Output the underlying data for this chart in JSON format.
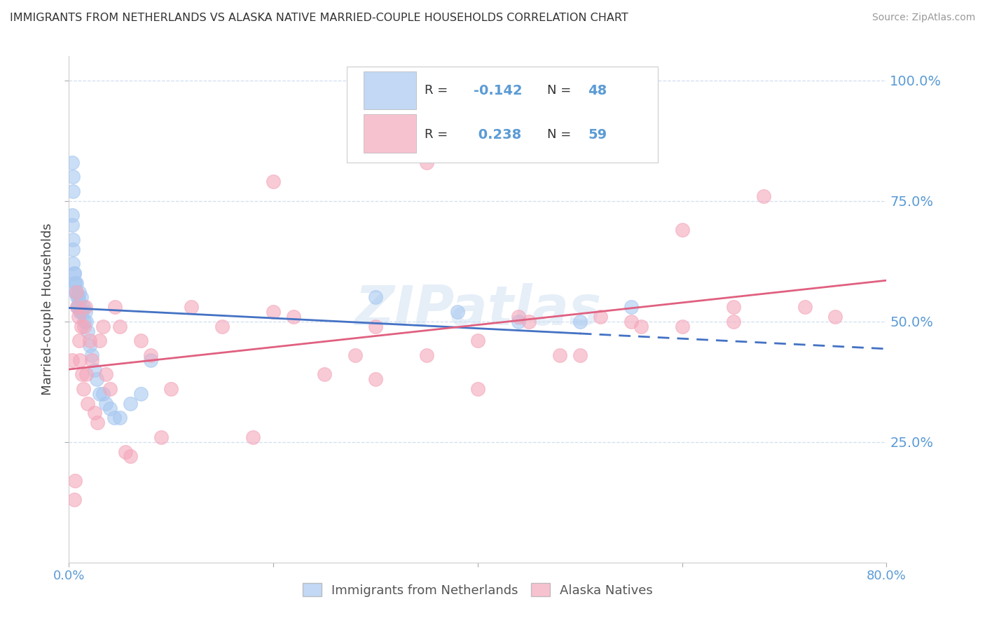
{
  "title": "IMMIGRANTS FROM NETHERLANDS VS ALASKA NATIVE MARRIED-COUPLE HOUSEHOLDS CORRELATION CHART",
  "source": "Source: ZipAtlas.com",
  "ylabel": "Married-couple Households",
  "xmin": 0.0,
  "xmax": 0.8,
  "ymin": 0.0,
  "ymax": 1.05,
  "yticks": [
    0.25,
    0.5,
    0.75,
    1.0
  ],
  "ytick_labels": [
    "25.0%",
    "50.0%",
    "75.0%",
    "100.0%"
  ],
  "xtick_labels": [
    "0.0%",
    "",
    "",
    "",
    "80.0%"
  ],
  "blue_R": -0.142,
  "blue_N": 48,
  "pink_R": 0.238,
  "pink_N": 59,
  "blue_color": "#a8c8f0",
  "pink_color": "#f4a8bc",
  "trend_blue_color": "#4472c4",
  "trend_pink_color": "#e06080",
  "axis_color": "#5b9bd5",
  "grid_color": "#d0dff0",
  "watermark": "ZIPatlas",
  "blue_scatter_x": [
    0.003,
    0.004,
    0.004,
    0.003,
    0.003,
    0.004,
    0.004,
    0.004,
    0.005,
    0.005,
    0.006,
    0.006,
    0.006,
    0.007,
    0.007,
    0.008,
    0.008,
    0.009,
    0.009,
    0.01,
    0.01,
    0.011,
    0.012,
    0.012,
    0.013,
    0.014,
    0.015,
    0.016,
    0.017,
    0.018,
    0.02,
    0.022,
    0.025,
    0.027,
    0.03,
    0.033,
    0.036,
    0.04,
    0.044,
    0.05,
    0.06,
    0.07,
    0.08,
    0.3,
    0.38,
    0.44,
    0.5,
    0.55
  ],
  "blue_scatter_y": [
    0.83,
    0.8,
    0.77,
    0.72,
    0.7,
    0.67,
    0.65,
    0.62,
    0.6,
    0.6,
    0.58,
    0.56,
    0.58,
    0.56,
    0.58,
    0.55,
    0.53,
    0.55,
    0.53,
    0.56,
    0.54,
    0.52,
    0.55,
    0.52,
    0.52,
    0.53,
    0.5,
    0.52,
    0.5,
    0.48,
    0.45,
    0.43,
    0.4,
    0.38,
    0.35,
    0.35,
    0.33,
    0.32,
    0.3,
    0.3,
    0.33,
    0.35,
    0.42,
    0.55,
    0.52,
    0.5,
    0.5,
    0.53
  ],
  "pink_scatter_x": [
    0.003,
    0.005,
    0.006,
    0.007,
    0.008,
    0.009,
    0.01,
    0.011,
    0.012,
    0.013,
    0.014,
    0.015,
    0.016,
    0.017,
    0.018,
    0.02,
    0.022,
    0.025,
    0.028,
    0.03,
    0.033,
    0.036,
    0.04,
    0.045,
    0.05,
    0.055,
    0.06,
    0.07,
    0.08,
    0.09,
    0.1,
    0.12,
    0.15,
    0.18,
    0.2,
    0.22,
    0.25,
    0.28,
    0.3,
    0.35,
    0.4,
    0.44,
    0.48,
    0.52,
    0.56,
    0.6,
    0.65,
    0.68,
    0.72,
    0.75,
    0.6,
    0.65,
    0.4,
    0.45,
    0.5,
    0.55,
    0.3,
    0.35,
    0.2
  ],
  "pink_scatter_y": [
    0.42,
    0.13,
    0.17,
    0.56,
    0.53,
    0.51,
    0.46,
    0.42,
    0.49,
    0.39,
    0.36,
    0.49,
    0.53,
    0.39,
    0.33,
    0.46,
    0.42,
    0.31,
    0.29,
    0.46,
    0.49,
    0.39,
    0.36,
    0.53,
    0.49,
    0.23,
    0.22,
    0.46,
    0.43,
    0.26,
    0.36,
    0.53,
    0.49,
    0.26,
    0.79,
    0.51,
    0.39,
    0.43,
    0.49,
    0.83,
    0.46,
    0.51,
    0.43,
    0.51,
    0.49,
    0.49,
    0.5,
    0.76,
    0.53,
    0.51,
    0.69,
    0.53,
    0.36,
    0.5,
    0.43,
    0.5,
    0.38,
    0.43,
    0.52
  ]
}
